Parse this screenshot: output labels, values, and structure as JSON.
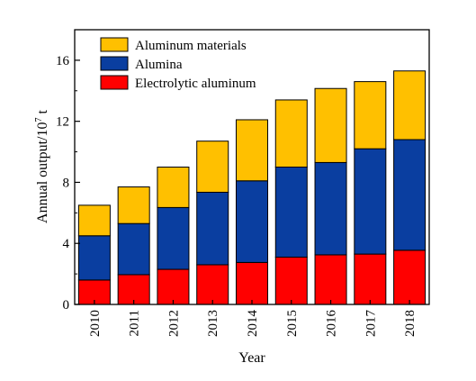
{
  "chart_data": {
    "type": "bar",
    "stacked": true,
    "xlabel": "Year",
    "ylabel": "Annual output/10",
    "ylabel_sup": "7",
    "ylabel_unit": " t",
    "ylim": [
      0,
      18
    ],
    "yticks": [
      0,
      4,
      8,
      12,
      16
    ],
    "categories": [
      "2010",
      "2011",
      "2012",
      "2013",
      "2014",
      "2015",
      "2016",
      "2017",
      "2018"
    ],
    "legend_position": "top-left",
    "grid": false,
    "series": [
      {
        "name": "Electrolytic aluminum",
        "color": "#ff0000",
        "values": [
          1.6,
          1.95,
          2.3,
          2.6,
          2.75,
          3.1,
          3.25,
          3.3,
          3.55
        ]
      },
      {
        "name": "Alumina",
        "color": "#0a3ea0",
        "values": [
          2.9,
          3.35,
          4.05,
          4.75,
          5.35,
          5.9,
          6.05,
          6.9,
          7.25
        ]
      },
      {
        "name": "Aluminum materials",
        "color": "#ffc000",
        "values": [
          2.0,
          2.4,
          2.65,
          3.35,
          4.0,
          4.4,
          4.85,
          4.4,
          4.5
        ]
      }
    ]
  }
}
